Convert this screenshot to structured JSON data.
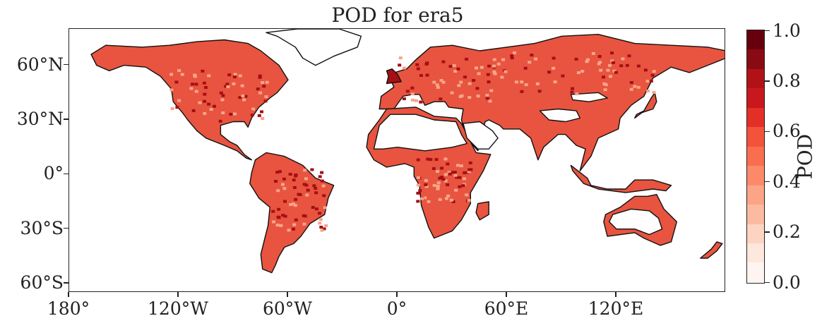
{
  "title": "POD for era5",
  "map": {
    "projection": "PlateCarree",
    "lon_range": [
      -180,
      180
    ],
    "lat_range": [
      -65,
      80
    ],
    "land_color": "#e8543f",
    "low_color": "#ffffff",
    "high_color": "#a50f15",
    "coastline_color": "#111111"
  },
  "axes": {
    "x_ticks": [
      {
        "value": -180,
        "label": "180°"
      },
      {
        "value": -120,
        "label": "120°W"
      },
      {
        "value": -60,
        "label": "60°W"
      },
      {
        "value": 0,
        "label": "0°"
      },
      {
        "value": 60,
        "label": "60°E"
      },
      {
        "value": 120,
        "label": "120°E"
      }
    ],
    "y_ticks": [
      {
        "value": 60,
        "label": "60°N"
      },
      {
        "value": 30,
        "label": "30°N"
      },
      {
        "value": 0,
        "label": "0°"
      },
      {
        "value": -30,
        "label": "30°S"
      },
      {
        "value": -60,
        "label": "60°S"
      }
    ]
  },
  "colorbar": {
    "label": "POD",
    "min": 0.0,
    "max": 1.0,
    "ticks": [
      {
        "value": 0.0,
        "label": "0.0"
      },
      {
        "value": 0.2,
        "label": "0.2"
      },
      {
        "value": 0.4,
        "label": "0.4"
      },
      {
        "value": 0.6,
        "label": "0.6"
      },
      {
        "value": 0.8,
        "label": "0.8"
      },
      {
        "value": 1.0,
        "label": "1.0"
      }
    ],
    "colors": [
      "#fff5f0",
      "#fee7dc",
      "#fdd4c2",
      "#fcbba1",
      "#fca486",
      "#fc8a6a",
      "#f96e4f",
      "#f4533b",
      "#e32f27",
      "#c9181d",
      "#b11218",
      "#8a0a13",
      "#67000d"
    ]
  }
}
